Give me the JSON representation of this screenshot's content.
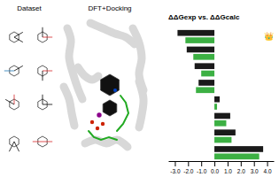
{
  "chart_data": {
    "type": "bar",
    "orientation": "horizontal",
    "title": "ΔΔGexp vs. ΔΔGcalc",
    "annotations": [
      "Dataset",
      "DFT+Docking",
      "👑"
    ],
    "categories": [
      null,
      null,
      null,
      null,
      null,
      null,
      null,
      null
    ],
    "series": [
      {
        "color": "#1a1a1a",
        "values": [
          -2.8,
          -2.1,
          -1.5,
          -1.2,
          0.4,
          1.2,
          1.6,
          3.7
        ]
      },
      {
        "color": "#3cb043",
        "values": [
          -2.2,
          -1.6,
          -1.0,
          -1.4,
          0.2,
          0.9,
          1.3,
          3.4
        ]
      }
    ],
    "xlim": [
      -3.5,
      4.5
    ],
    "xticks": [
      {
        "value": -3,
        "label": "-3.0"
      },
      {
        "value": -2,
        "label": "-2.0"
      },
      {
        "value": -1,
        "label": "-1.0"
      },
      {
        "value": 0,
        "label": "0.0"
      },
      {
        "value": 1,
        "label": "1.0"
      },
      {
        "value": 2,
        "label": "2.0"
      },
      {
        "value": 3,
        "label": "3.0"
      },
      {
        "value": 4,
        "label": "4.0"
      }
    ],
    "tick_labels": "x",
    "grid": false
  }
}
